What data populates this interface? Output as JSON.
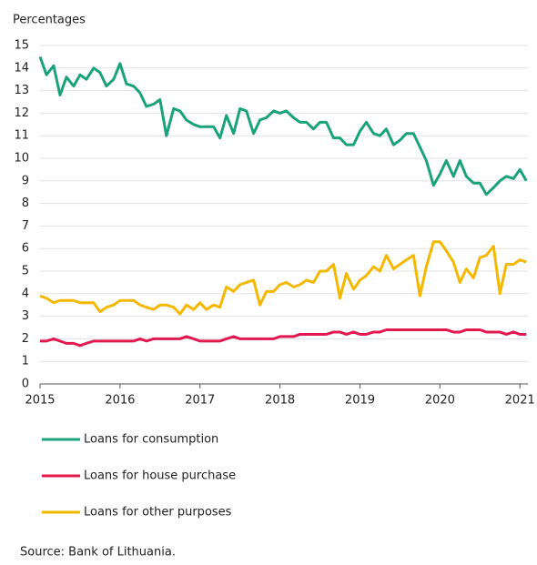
{
  "chart_data": {
    "type": "line",
    "ylabel": "Percentages",
    "source": "Source: Bank of Lithuania.",
    "x": [
      2015,
      2015.08,
      2015.17,
      2015.25,
      2015.33,
      2015.42,
      2015.5,
      2015.58,
      2015.67,
      2015.75,
      2015.83,
      2015.92,
      2016,
      2016.08,
      2016.17,
      2016.25,
      2016.33,
      2016.42,
      2016.5,
      2016.58,
      2016.67,
      2016.75,
      2016.83,
      2016.92,
      2017,
      2017.08,
      2017.17,
      2017.25,
      2017.33,
      2017.42,
      2017.5,
      2017.58,
      2017.67,
      2017.75,
      2017.83,
      2017.92,
      2018,
      2018.08,
      2018.17,
      2018.25,
      2018.33,
      2018.42,
      2018.5,
      2018.58,
      2018.67,
      2018.75,
      2018.83,
      2018.92,
      2019,
      2019.08,
      2019.17,
      2019.25,
      2019.33,
      2019.42,
      2019.5,
      2019.58,
      2019.67,
      2019.75,
      2019.83,
      2019.92,
      2020,
      2020.08,
      2020.17,
      2020.25,
      2020.33,
      2020.42,
      2020.5,
      2020.58,
      2020.67,
      2020.75,
      2020.83,
      2020.92,
      2021,
      2021.08
    ],
    "series": [
      {
        "name": "Loans for consumption",
        "color": "#1aa37a",
        "values": [
          14.5,
          13.7,
          14.1,
          12.8,
          13.6,
          13.2,
          13.7,
          13.5,
          14.0,
          13.8,
          13.2,
          13.5,
          14.2,
          13.3,
          13.2,
          12.9,
          12.3,
          12.4,
          12.6,
          11.0,
          12.2,
          12.1,
          11.7,
          11.5,
          11.4,
          11.4,
          11.4,
          10.9,
          11.9,
          11.1,
          12.2,
          12.1,
          11.1,
          11.7,
          11.8,
          12.1,
          12.0,
          12.1,
          11.8,
          11.6,
          11.6,
          11.3,
          11.6,
          11.6,
          10.9,
          10.9,
          10.6,
          10.6,
          11.2,
          11.6,
          11.1,
          11.0,
          11.3,
          10.6,
          10.8,
          11.1,
          11.1,
          10.5,
          9.9,
          8.8,
          9.3,
          9.9,
          9.2,
          9.9,
          9.2,
          8.9,
          8.9,
          8.4,
          8.7,
          9.0,
          9.2,
          9.1,
          9.5,
          9.0
        ]
      },
      {
        "name": "Loans for house purchase",
        "color": "#e3184f",
        "values": [
          1.9,
          1.9,
          2.0,
          1.9,
          1.8,
          1.8,
          1.7,
          1.8,
          1.9,
          1.9,
          1.9,
          1.9,
          1.9,
          1.9,
          1.9,
          2.0,
          1.9,
          2.0,
          2.0,
          2.0,
          2.0,
          2.0,
          2.1,
          2.0,
          1.9,
          1.9,
          1.9,
          1.9,
          2.0,
          2.1,
          2.0,
          2.0,
          2.0,
          2.0,
          2.0,
          2.0,
          2.1,
          2.1,
          2.1,
          2.2,
          2.2,
          2.2,
          2.2,
          2.2,
          2.3,
          2.3,
          2.2,
          2.3,
          2.2,
          2.2,
          2.3,
          2.3,
          2.4,
          2.4,
          2.4,
          2.4,
          2.4,
          2.4,
          2.4,
          2.4,
          2.4,
          2.4,
          2.3,
          2.3,
          2.4,
          2.4,
          2.4,
          2.3,
          2.3,
          2.3,
          2.2,
          2.3,
          2.2,
          2.2
        ]
      },
      {
        "name": "Loans for other purposes",
        "color": "#f5b800",
        "values": [
          3.9,
          3.8,
          3.6,
          3.7,
          3.7,
          3.7,
          3.6,
          3.6,
          3.6,
          3.2,
          3.4,
          3.5,
          3.7,
          3.7,
          3.7,
          3.5,
          3.4,
          3.3,
          3.5,
          3.5,
          3.4,
          3.1,
          3.5,
          3.3,
          3.6,
          3.3,
          3.5,
          3.4,
          4.3,
          4.1,
          4.4,
          4.5,
          4.6,
          3.5,
          4.1,
          4.1,
          4.4,
          4.5,
          4.3,
          4.4,
          4.6,
          4.5,
          5.0,
          5.0,
          5.3,
          3.8,
          4.9,
          4.2,
          4.6,
          4.8,
          5.2,
          5.0,
          5.7,
          5.1,
          5.3,
          5.5,
          5.7,
          3.9,
          5.2,
          6.3,
          6.3,
          5.9,
          5.4,
          4.5,
          5.1,
          4.7,
          5.6,
          5.7,
          6.1,
          4.0,
          5.3,
          5.3,
          5.5,
          5.4
        ]
      }
    ],
    "xlim": [
      2015,
      2021.1
    ],
    "xticks": [
      2015,
      2016,
      2017,
      2018,
      2019,
      2020,
      2021
    ],
    "ylim": [
      0,
      15
    ],
    "yticks": [
      0,
      1,
      2,
      3,
      4,
      5,
      6,
      7,
      8,
      9,
      10,
      11,
      12,
      13,
      14,
      15
    ],
    "grid": true
  }
}
